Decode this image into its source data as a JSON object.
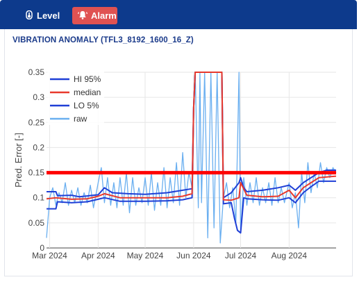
{
  "tabs": [
    {
      "label": "Level",
      "icon": "gauge-icon"
    },
    {
      "label": "Alarm",
      "icon": "alarm-bell-icon",
      "active": true
    }
  ],
  "colors": {
    "header": "#0d3a8c",
    "alarm_tab": "#e05252",
    "title": "#1a3a8a",
    "hi": "#1f3fd6",
    "lo": "#1f3fd6",
    "median": "#e8392c",
    "raw": "#6aaff0",
    "threshold": "#ff0000"
  },
  "chart_data": {
    "type": "line",
    "title": "VIBRATION ANOMALY (TFL3_8192_1600_16_Z)",
    "ylabel": "Pred. Error [-]",
    "xlabel": "",
    "xlim": [
      "2024-02-28",
      "2024-08-31"
    ],
    "ylim": [
      0,
      0.35
    ],
    "y_ticks": [
      "0",
      "0.05",
      "0.1",
      "0.15",
      "0.2",
      "0.25",
      "0.3",
      "0.35"
    ],
    "x_ticks": [
      {
        "label": "Mar 2024",
        "date": "2024-03-01"
      },
      {
        "label": "Apr 2024",
        "date": "2024-04-01"
      },
      {
        "label": "May 2024",
        "date": "2024-05-01"
      },
      {
        "label": "Jun 2024",
        "date": "2024-06-01"
      },
      {
        "label": "Jul 2024",
        "date": "2024-07-01"
      },
      {
        "label": "Aug 2024",
        "date": "2024-08-01"
      }
    ],
    "legend_position": "top-left",
    "threshold": {
      "value": 0.15,
      "color": "#ff0000"
    },
    "series": [
      {
        "name": "HI 95%",
        "color": "#1f3fd6",
        "points": [
          [
            "2024-02-28",
            0.112
          ],
          [
            "2024-03-05",
            0.112
          ],
          [
            "2024-03-06",
            0.104
          ],
          [
            "2024-03-15",
            0.105
          ],
          [
            "2024-03-20",
            0.102
          ],
          [
            "2024-04-01",
            0.106
          ],
          [
            "2024-04-05",
            0.12
          ],
          [
            "2024-04-10",
            0.11
          ],
          [
            "2024-04-20",
            0.108
          ],
          [
            "2024-05-01",
            0.107
          ],
          [
            "2024-05-15",
            0.11
          ],
          [
            "2024-05-25",
            0.115
          ],
          [
            "2024-05-31",
            0.118
          ],
          [
            "2024-06-01",
            0.28
          ],
          [
            "2024-06-02",
            0.35
          ],
          [
            "2024-06-04",
            0.35
          ],
          [
            "2024-06-06",
            0.35
          ],
          [
            "2024-06-08",
            0.35
          ],
          [
            "2024-06-10",
            0.35
          ],
          [
            "2024-06-12",
            0.35
          ],
          [
            "2024-06-14",
            0.35
          ],
          [
            "2024-06-16",
            0.35
          ],
          [
            "2024-06-19",
            0.35
          ],
          [
            "2024-06-20",
            0.1
          ],
          [
            "2024-06-25",
            0.11
          ],
          [
            "2024-06-30",
            0.13
          ],
          [
            "2024-07-01",
            0.14
          ],
          [
            "2024-07-03",
            0.12
          ],
          [
            "2024-07-05",
            0.112
          ],
          [
            "2024-07-15",
            0.115
          ],
          [
            "2024-07-25",
            0.12
          ],
          [
            "2024-08-01",
            0.125
          ],
          [
            "2024-08-05",
            0.115
          ],
          [
            "2024-08-10",
            0.13
          ],
          [
            "2024-08-15",
            0.14
          ],
          [
            "2024-08-20",
            0.15
          ],
          [
            "2024-08-25",
            0.155
          ],
          [
            "2024-08-31",
            0.155
          ]
        ]
      },
      {
        "name": "median",
        "color": "#e8392c",
        "points": [
          [
            "2024-02-28",
            0.098
          ],
          [
            "2024-03-05",
            0.1
          ],
          [
            "2024-03-15",
            0.097
          ],
          [
            "2024-03-25",
            0.098
          ],
          [
            "2024-04-01",
            0.103
          ],
          [
            "2024-04-05",
            0.108
          ],
          [
            "2024-04-15",
            0.1
          ],
          [
            "2024-04-25",
            0.1
          ],
          [
            "2024-05-01",
            0.1
          ],
          [
            "2024-05-15",
            0.1
          ],
          [
            "2024-05-25",
            0.103
          ],
          [
            "2024-05-31",
            0.108
          ],
          [
            "2024-06-01",
            0.28
          ],
          [
            "2024-06-02",
            0.35
          ],
          [
            "2024-06-19",
            0.35
          ],
          [
            "2024-06-20",
            0.096
          ],
          [
            "2024-06-25",
            0.095
          ],
          [
            "2024-06-30",
            0.1
          ],
          [
            "2024-07-01",
            0.13
          ],
          [
            "2024-07-05",
            0.105
          ],
          [
            "2024-07-15",
            0.102
          ],
          [
            "2024-07-25",
            0.103
          ],
          [
            "2024-08-01",
            0.115
          ],
          [
            "2024-08-05",
            0.1
          ],
          [
            "2024-08-10",
            0.12
          ],
          [
            "2024-08-15",
            0.13
          ],
          [
            "2024-08-20",
            0.14
          ],
          [
            "2024-08-31",
            0.143
          ]
        ]
      },
      {
        "name": "LO 5%",
        "color": "#1f3fd6",
        "points": [
          [
            "2024-02-28",
            0.078
          ],
          [
            "2024-03-05",
            0.078
          ],
          [
            "2024-03-06",
            0.092
          ],
          [
            "2024-03-15",
            0.09
          ],
          [
            "2024-03-25",
            0.092
          ],
          [
            "2024-04-01",
            0.097
          ],
          [
            "2024-04-05",
            0.1
          ],
          [
            "2024-04-15",
            0.093
          ],
          [
            "2024-04-25",
            0.093
          ],
          [
            "2024-05-01",
            0.093
          ],
          [
            "2024-05-15",
            0.094
          ],
          [
            "2024-05-25",
            0.096
          ],
          [
            "2024-05-31",
            0.1
          ],
          [
            "2024-06-01",
            0.28
          ],
          [
            "2024-06-02",
            0.35
          ],
          [
            "2024-06-19",
            0.35
          ],
          [
            "2024-06-20",
            0.088
          ],
          [
            "2024-06-25",
            0.09
          ],
          [
            "2024-06-27",
            0.06
          ],
          [
            "2024-06-29",
            0.035
          ],
          [
            "2024-07-01",
            0.03
          ],
          [
            "2024-07-03",
            0.1
          ],
          [
            "2024-07-05",
            0.098
          ],
          [
            "2024-07-15",
            0.096
          ],
          [
            "2024-07-25",
            0.095
          ],
          [
            "2024-08-01",
            0.1
          ],
          [
            "2024-08-05",
            0.09
          ],
          [
            "2024-08-10",
            0.11
          ],
          [
            "2024-08-15",
            0.122
          ],
          [
            "2024-08-20",
            0.133
          ],
          [
            "2024-08-31",
            0.133
          ]
        ]
      },
      {
        "name": "raw",
        "color": "#6aaff0",
        "points": [
          [
            "2024-02-28",
            0.02
          ],
          [
            "2024-02-29",
            0.06
          ],
          [
            "2024-03-01",
            0.1
          ],
          [
            "2024-03-03",
            0.12
          ],
          [
            "2024-03-05",
            0.085
          ],
          [
            "2024-03-07",
            0.11
          ],
          [
            "2024-03-09",
            0.09
          ],
          [
            "2024-03-11",
            0.13
          ],
          [
            "2024-03-13",
            0.085
          ],
          [
            "2024-03-15",
            0.115
          ],
          [
            "2024-03-17",
            0.09
          ],
          [
            "2024-03-19",
            0.12
          ],
          [
            "2024-03-21",
            0.085
          ],
          [
            "2024-03-23",
            0.11
          ],
          [
            "2024-03-25",
            0.09
          ],
          [
            "2024-03-27",
            0.125
          ],
          [
            "2024-03-29",
            0.08
          ],
          [
            "2024-04-01",
            0.13
          ],
          [
            "2024-04-03",
            0.16
          ],
          [
            "2024-04-05",
            0.09
          ],
          [
            "2024-04-07",
            0.14
          ],
          [
            "2024-04-09",
            0.085
          ],
          [
            "2024-04-11",
            0.13
          ],
          [
            "2024-04-13",
            0.08
          ],
          [
            "2024-04-15",
            0.14
          ],
          [
            "2024-04-17",
            0.085
          ],
          [
            "2024-04-19",
            0.15
          ],
          [
            "2024-04-21",
            0.07
          ],
          [
            "2024-04-23",
            0.14
          ],
          [
            "2024-04-25",
            0.085
          ],
          [
            "2024-04-27",
            0.12
          ],
          [
            "2024-04-29",
            0.09
          ],
          [
            "2024-05-01",
            0.14
          ],
          [
            "2024-05-03",
            0.085
          ],
          [
            "2024-05-05",
            0.15
          ],
          [
            "2024-05-07",
            0.075
          ],
          [
            "2024-05-09",
            0.13
          ],
          [
            "2024-05-11",
            0.085
          ],
          [
            "2024-05-13",
            0.16
          ],
          [
            "2024-05-15",
            0.08
          ],
          [
            "2024-05-17",
            0.14
          ],
          [
            "2024-05-19",
            0.09
          ],
          [
            "2024-05-21",
            0.17
          ],
          [
            "2024-05-23",
            0.085
          ],
          [
            "2024-05-25",
            0.19
          ],
          [
            "2024-05-27",
            0.1
          ],
          [
            "2024-05-29",
            0.15
          ],
          [
            "2024-05-31",
            0.12
          ],
          [
            "2024-06-01",
            0.27
          ],
          [
            "2024-06-02",
            0.35
          ],
          [
            "2024-06-04",
            0.08
          ],
          [
            "2024-06-05",
            0.35
          ],
          [
            "2024-06-06",
            0.09
          ],
          [
            "2024-06-08",
            0.35
          ],
          [
            "2024-06-10",
            0.02
          ],
          [
            "2024-06-12",
            0.35
          ],
          [
            "2024-06-14",
            0.04
          ],
          [
            "2024-06-16",
            0.35
          ],
          [
            "2024-06-18",
            0.01
          ],
          [
            "2024-06-20",
            0.1
          ],
          [
            "2024-06-22",
            0.13
          ],
          [
            "2024-06-24",
            0.08
          ],
          [
            "2024-06-26",
            0.12
          ],
          [
            "2024-06-28",
            0.05
          ],
          [
            "2024-06-30",
            0.35
          ],
          [
            "2024-07-01",
            0.03
          ],
          [
            "2024-07-03",
            0.14
          ],
          [
            "2024-07-05",
            0.085
          ],
          [
            "2024-07-07",
            0.13
          ],
          [
            "2024-07-09",
            0.09
          ],
          [
            "2024-07-11",
            0.14
          ],
          [
            "2024-07-13",
            0.085
          ],
          [
            "2024-07-15",
            0.12
          ],
          [
            "2024-07-17",
            0.09
          ],
          [
            "2024-07-19",
            0.13
          ],
          [
            "2024-07-21",
            0.085
          ],
          [
            "2024-07-23",
            0.14
          ],
          [
            "2024-07-25",
            0.09
          ],
          [
            "2024-07-27",
            0.12
          ],
          [
            "2024-07-29",
            0.09
          ],
          [
            "2024-08-01",
            0.13
          ],
          [
            "2024-08-03",
            0.08
          ],
          [
            "2024-08-05",
            0.11
          ],
          [
            "2024-08-07",
            0.04
          ],
          [
            "2024-08-09",
            0.15
          ],
          [
            "2024-08-11",
            0.09
          ],
          [
            "2024-08-13",
            0.17
          ],
          [
            "2024-08-15",
            0.11
          ],
          [
            "2024-08-17",
            0.15
          ],
          [
            "2024-08-19",
            0.12
          ],
          [
            "2024-08-21",
            0.17
          ],
          [
            "2024-08-23",
            0.13
          ],
          [
            "2024-08-25",
            0.16
          ],
          [
            "2024-08-27",
            0.14
          ],
          [
            "2024-08-29",
            0.16
          ],
          [
            "2024-08-31",
            0.15
          ]
        ]
      }
    ]
  }
}
